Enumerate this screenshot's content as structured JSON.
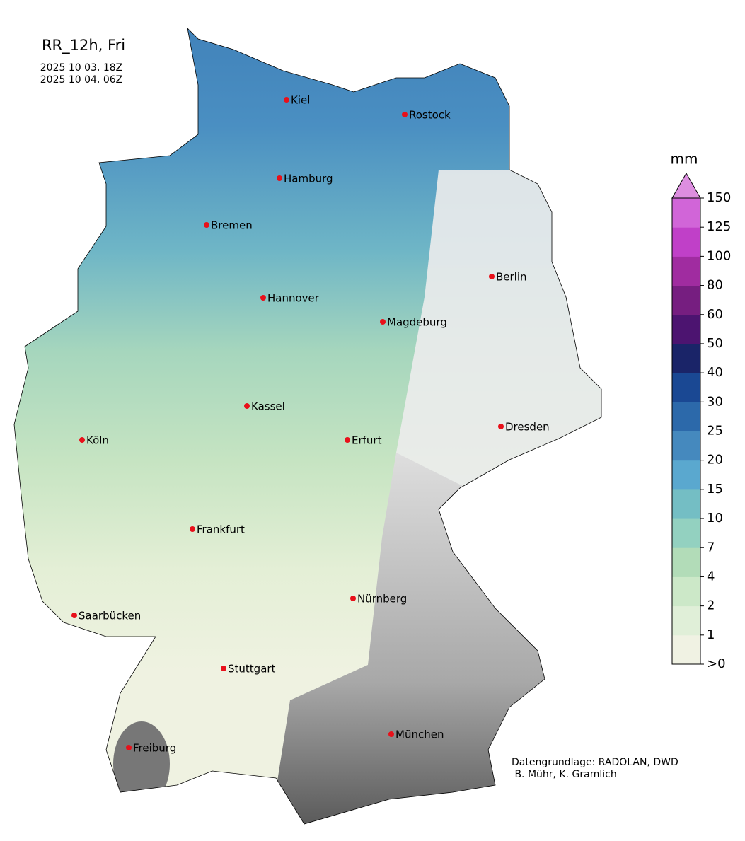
{
  "header": {
    "title": "RR_12h, Fri",
    "period_start": "2025 10 03, 18Z",
    "period_end": "2025 10 04, 06Z"
  },
  "cities": [
    "Kiel",
    "Rostock",
    "Hamburg",
    "Bremen",
    "Berlin",
    "Hannover",
    "Magdeburg",
    "Kassel",
    "Dresden",
    "Köln",
    "Erfurt",
    "Frankfurt",
    "Nürnberg",
    "Saarbücken",
    "Stuttgart",
    "München",
    "Freiburg"
  ],
  "legend": {
    "unit": "mm",
    "ticks": [
      ">0",
      1,
      2,
      4,
      7,
      10,
      15,
      20,
      25,
      30,
      40,
      50,
      60,
      80,
      100,
      125,
      150
    ],
    "colors": [
      "#f0f2e3",
      "#e0efd8",
      "#cce8c8",
      "#b2dcb8",
      "#93d1c0",
      "#74bec4",
      "#5aa8cf",
      "#4589be",
      "#2c69aa",
      "#1a4893",
      "#1a2468",
      "#4c1470",
      "#761e80",
      "#a02ca0",
      "#c040c8",
      "#d165d8"
    ],
    "extend_color": "#dd8ee0"
  },
  "credits": {
    "source": "Datengrundlage: RADOLAN, DWD",
    "authors": " B. Mühr, K. Gramlich"
  }
}
